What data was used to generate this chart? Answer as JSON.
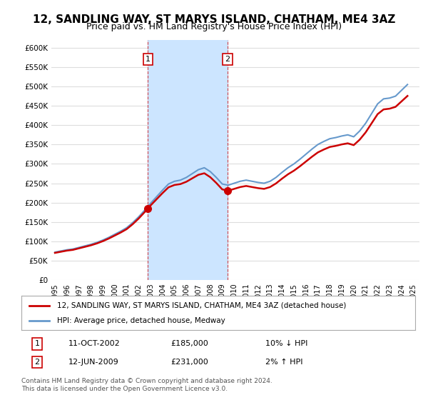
{
  "title": "12, SANDLING WAY, ST MARYS ISLAND, CHATHAM, ME4 3AZ",
  "subtitle": "Price paid vs. HM Land Registry's House Price Index (HPI)",
  "title_fontsize": 11,
  "subtitle_fontsize": 9,
  "ylabel_ticks": [
    "£0",
    "£50K",
    "£100K",
    "£150K",
    "£200K",
    "£250K",
    "£300K",
    "£350K",
    "£400K",
    "£450K",
    "£500K",
    "£550K",
    "£600K"
  ],
  "ytick_vals": [
    0,
    50000,
    100000,
    150000,
    200000,
    250000,
    300000,
    350000,
    400000,
    450000,
    500000,
    550000,
    600000
  ],
  "ylim": [
    0,
    620000
  ],
  "xlim_start": 1995.0,
  "xlim_end": 2025.5,
  "sale1_x": 2002.78,
  "sale1_y": 185000,
  "sale2_x": 2009.45,
  "sale2_y": 231000,
  "shade_color": "#cce5ff",
  "line_red": "#cc0000",
  "line_blue": "#6699cc",
  "background_color": "#ffffff",
  "grid_color": "#dddddd",
  "legend_label_red": "12, SANDLING WAY, ST MARYS ISLAND, CHATHAM, ME4 3AZ (detached house)",
  "legend_label_blue": "HPI: Average price, detached house, Medway",
  "ann1_label": "1",
  "ann1_date": "11-OCT-2002",
  "ann1_price": "£185,000",
  "ann1_hpi": "10% ↓ HPI",
  "ann2_label": "2",
  "ann2_date": "12-JUN-2009",
  "ann2_price": "£231,000",
  "ann2_hpi": "2% ↑ HPI",
  "footer": "Contains HM Land Registry data © Crown copyright and database right 2024.\nThis data is licensed under the Open Government Licence v3.0.",
  "xticks": [
    1995,
    1996,
    1997,
    1998,
    1999,
    2000,
    2001,
    2002,
    2003,
    2004,
    2005,
    2006,
    2007,
    2008,
    2009,
    2010,
    2011,
    2012,
    2013,
    2014,
    2015,
    2016,
    2017,
    2018,
    2019,
    2020,
    2021,
    2022,
    2023,
    2024,
    2025
  ]
}
